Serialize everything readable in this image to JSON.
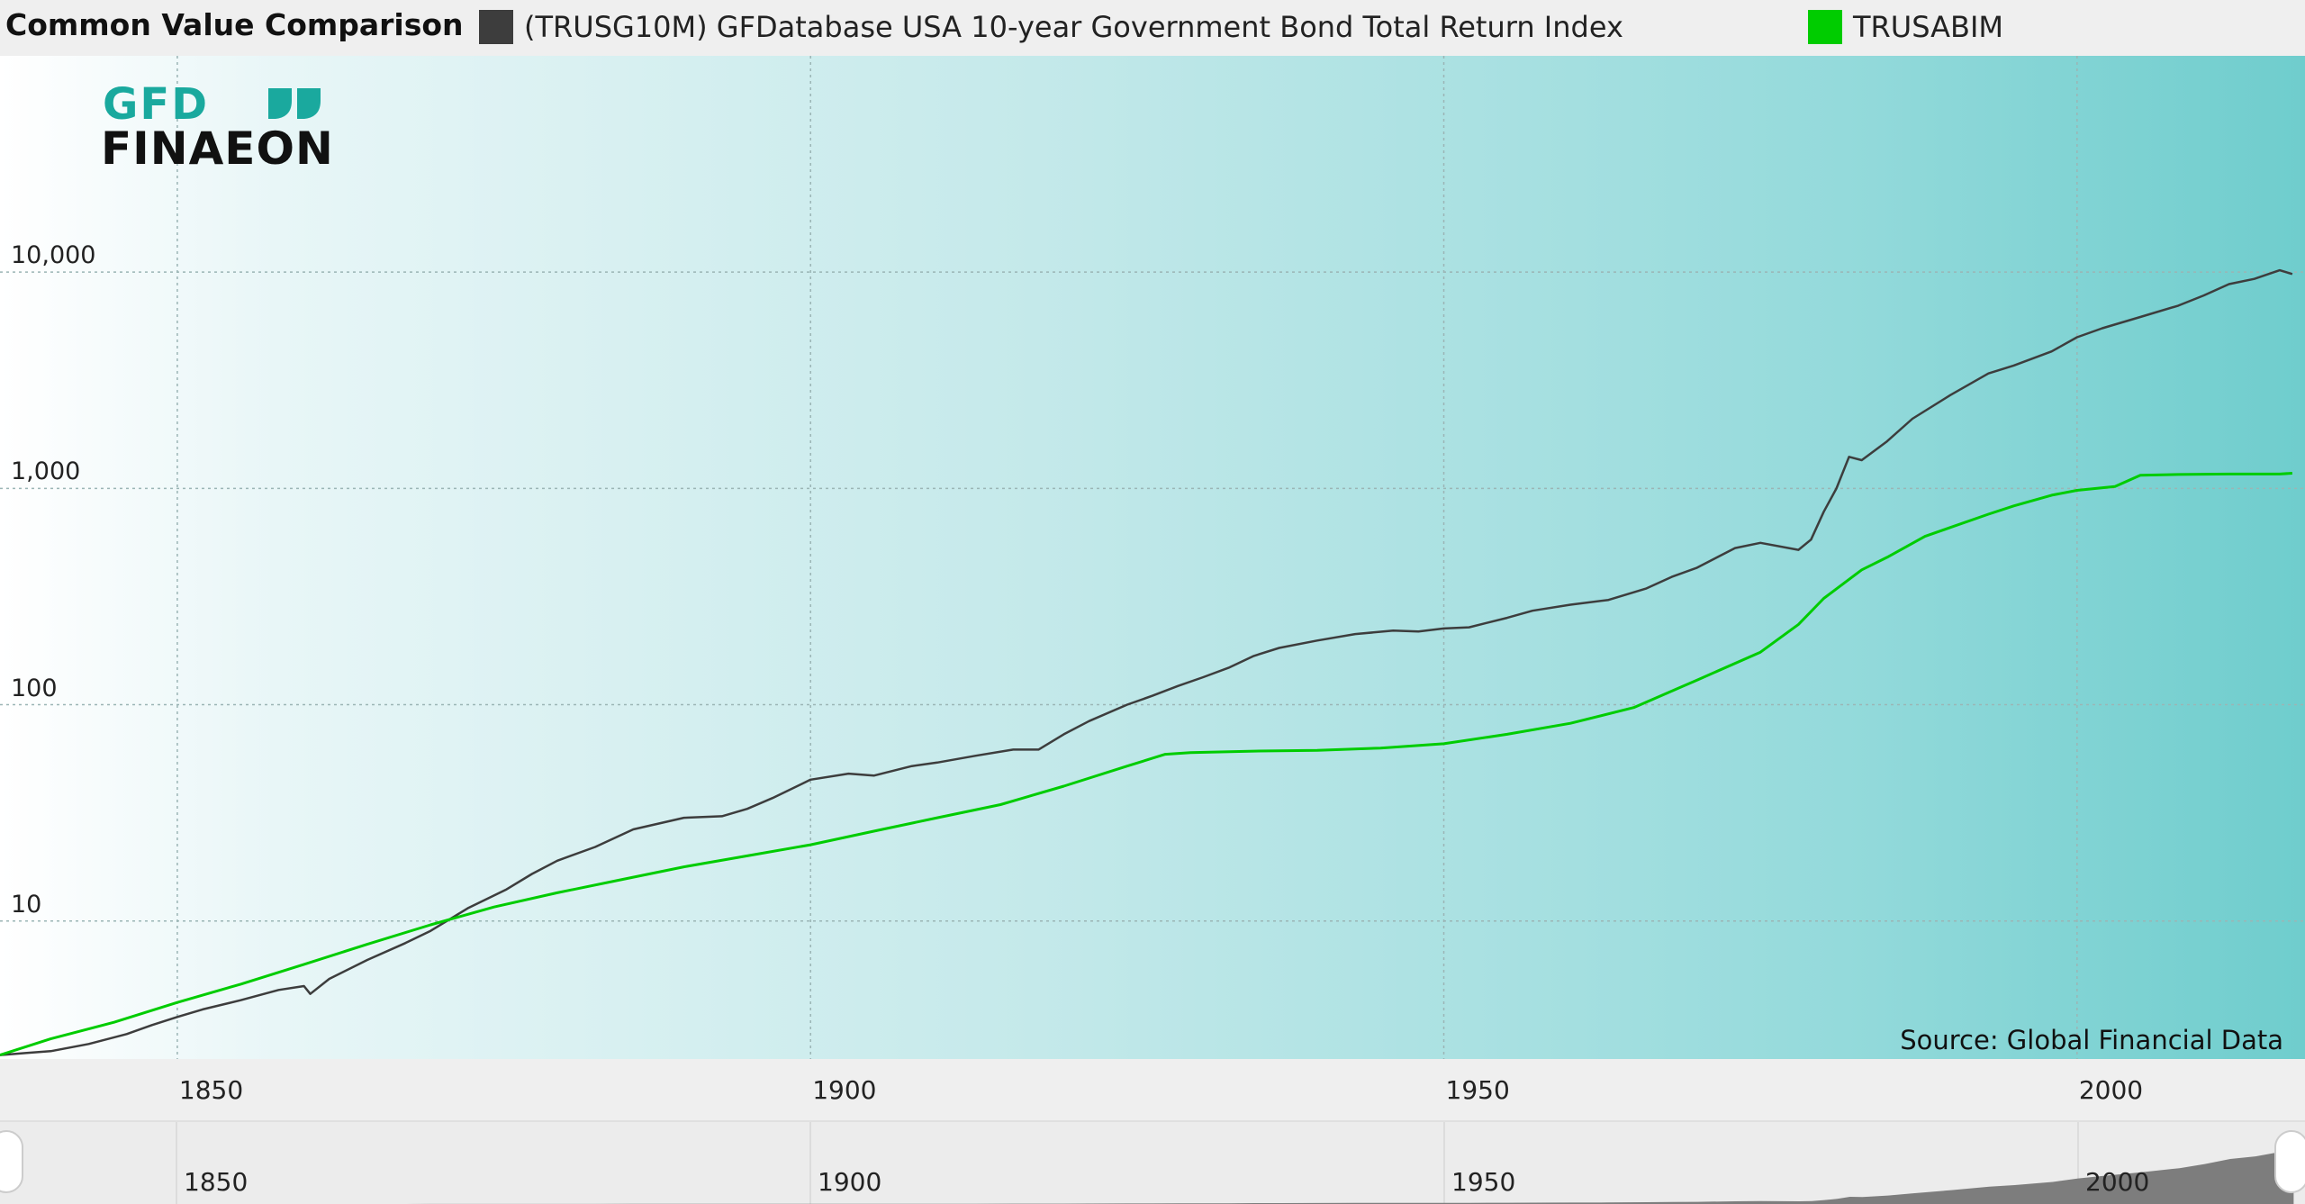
{
  "header": {
    "title": "Common Value Comparison"
  },
  "legend": [
    {
      "label": "(TRUSG10M) GFDatabase USA 10-year Government Bond Total Return Index",
      "color": "#3d3d3d"
    },
    {
      "label": "TRUSABIM",
      "color": "#00cc00"
    }
  ],
  "logo": {
    "line1": "GFD",
    "line2": "FINAEON"
  },
  "source": "Source: Global Financial Data",
  "navigator": {
    "ticks": [
      "1850",
      "1900",
      "1950",
      "2000"
    ]
  },
  "chart_data": {
    "type": "line",
    "yscale": "log",
    "ylim": [
      2.3,
      100000
    ],
    "xlim": [
      1836,
      2018
    ],
    "xticks": [
      1850,
      1900,
      1950,
      2000
    ],
    "xtick_labels": [
      "1850",
      "1900",
      "1950",
      "2000"
    ],
    "yticks": [
      10,
      100,
      1000,
      10000
    ],
    "ytick_labels": [
      "10",
      "100",
      "1,000",
      "10,000"
    ],
    "grid": true,
    "legend_position": "top",
    "series": [
      {
        "name": "(TRUSG10M) GFDatabase USA 10-year Government Bond Total Return Index",
        "color": "#3d3d3d",
        "x": [
          1836,
          1838,
          1840,
          1843,
          1846,
          1848,
          1850,
          1852,
          1855,
          1858,
          1860,
          1860.5,
          1862,
          1865,
          1868,
          1870,
          1873,
          1876,
          1878,
          1880,
          1883,
          1886,
          1890,
          1893,
          1895,
          1897,
          1900,
          1903,
          1905,
          1908,
          1910,
          1913,
          1916,
          1918,
          1920,
          1922,
          1925,
          1927,
          1929,
          1931,
          1933,
          1935,
          1937,
          1940,
          1943,
          1946,
          1948,
          1950,
          1952,
          1955,
          1957,
          1960,
          1963,
          1966,
          1968,
          1970,
          1973,
          1975,
          1978,
          1979,
          1980,
          1981,
          1982,
          1983,
          1985,
          1987,
          1990,
          1993,
          1995,
          1998,
          2000,
          2002,
          2005,
          2008,
          2010,
          2012,
          2014,
          2016,
          2017
        ],
        "values": [
          2.4,
          2.45,
          2.5,
          2.7,
          3.0,
          3.3,
          3.6,
          3.9,
          4.3,
          4.8,
          5.0,
          4.6,
          5.4,
          6.6,
          7.9,
          9.0,
          11.5,
          14.0,
          16.5,
          19.0,
          22.0,
          26.5,
          30.0,
          30.5,
          33.0,
          37.0,
          45.0,
          48.0,
          47.0,
          52.0,
          54.0,
          58.0,
          62.0,
          62.0,
          73.0,
          84.0,
          100.0,
          110.0,
          122.0,
          134.0,
          148.0,
          168.0,
          183.0,
          198.0,
          212.0,
          220.0,
          218.0,
          225.0,
          228.0,
          252.0,
          272.0,
          290.0,
          305.0,
          345.0,
          390.0,
          430.0,
          530.0,
          560.0,
          520.0,
          580.0,
          780.0,
          1000.0,
          1400.0,
          1350.0,
          1650.0,
          2100.0,
          2700.0,
          3400.0,
          3700.0,
          4300.0,
          5000.0,
          5500.0,
          6200.0,
          7000.0,
          7800.0,
          8800.0,
          9300.0,
          10200.0,
          9800.0
        ]
      },
      {
        "name": "TRUSABIM",
        "color": "#00cc00",
        "x": [
          1836,
          1840,
          1845,
          1850,
          1855,
          1860,
          1865,
          1870,
          1875,
          1880,
          1885,
          1890,
          1895,
          1900,
          1905,
          1910,
          1915,
          1920,
          1925,
          1928,
          1930,
          1935,
          1940,
          1945,
          1950,
          1955,
          1960,
          1965,
          1970,
          1975,
          1978,
          1980,
          1983,
          1985,
          1988,
          1990,
          1993,
          1995,
          1998,
          2000,
          2003,
          2005,
          2008,
          2012,
          2016,
          2017
        ],
        "values": [
          2.4,
          2.85,
          3.4,
          4.2,
          5.1,
          6.3,
          7.8,
          9.6,
          11.6,
          13.5,
          15.5,
          17.8,
          20.0,
          22.5,
          26.0,
          30.0,
          34.5,
          42.0,
          52.0,
          59.0,
          60.0,
          61.0,
          61.5,
          63.0,
          66.0,
          73.0,
          82.0,
          97.0,
          130.0,
          175.0,
          235.0,
          310.0,
          420.0,
          480.0,
          600.0,
          660.0,
          760.0,
          830.0,
          930.0,
          980.0,
          1020.0,
          1150.0,
          1160.0,
          1165.0,
          1165.0,
          1175.0
        ]
      }
    ]
  }
}
